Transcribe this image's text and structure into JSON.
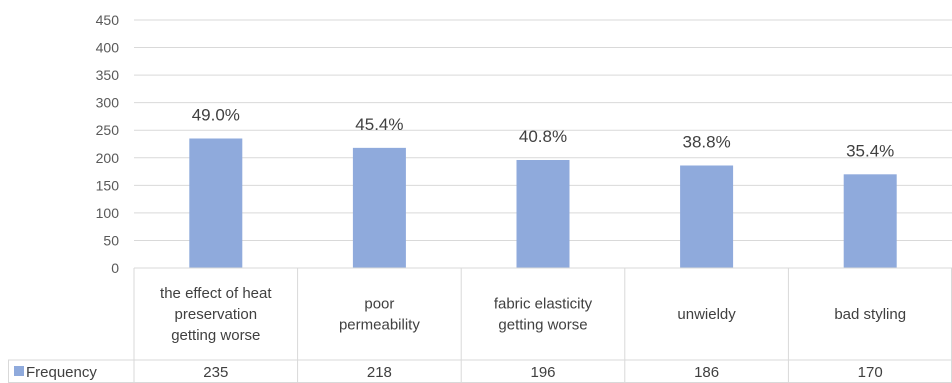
{
  "chart_data": {
    "type": "bar",
    "categories": [
      [
        "the effect of heat",
        "preservation",
        "getting worse"
      ],
      [
        "poor",
        "permeability"
      ],
      [
        "fabric elasticity",
        "getting worse"
      ],
      [
        "unwieldy"
      ],
      [
        "bad styling"
      ]
    ],
    "series": [
      {
        "name": "Frequency",
        "values": [
          235,
          218,
          196,
          186,
          170
        ],
        "color": "#8faadc"
      }
    ],
    "data_labels": [
      "49.0%",
      "45.4%",
      "40.8%",
      "38.8%",
      "35.4%"
    ],
    "ylim": [
      0,
      450
    ],
    "y_ticks": [
      0,
      50,
      100,
      150,
      200,
      250,
      300,
      350,
      400,
      450
    ],
    "grid": true,
    "legend": "data-table",
    "title": "",
    "xlabel": "",
    "ylabel": ""
  }
}
